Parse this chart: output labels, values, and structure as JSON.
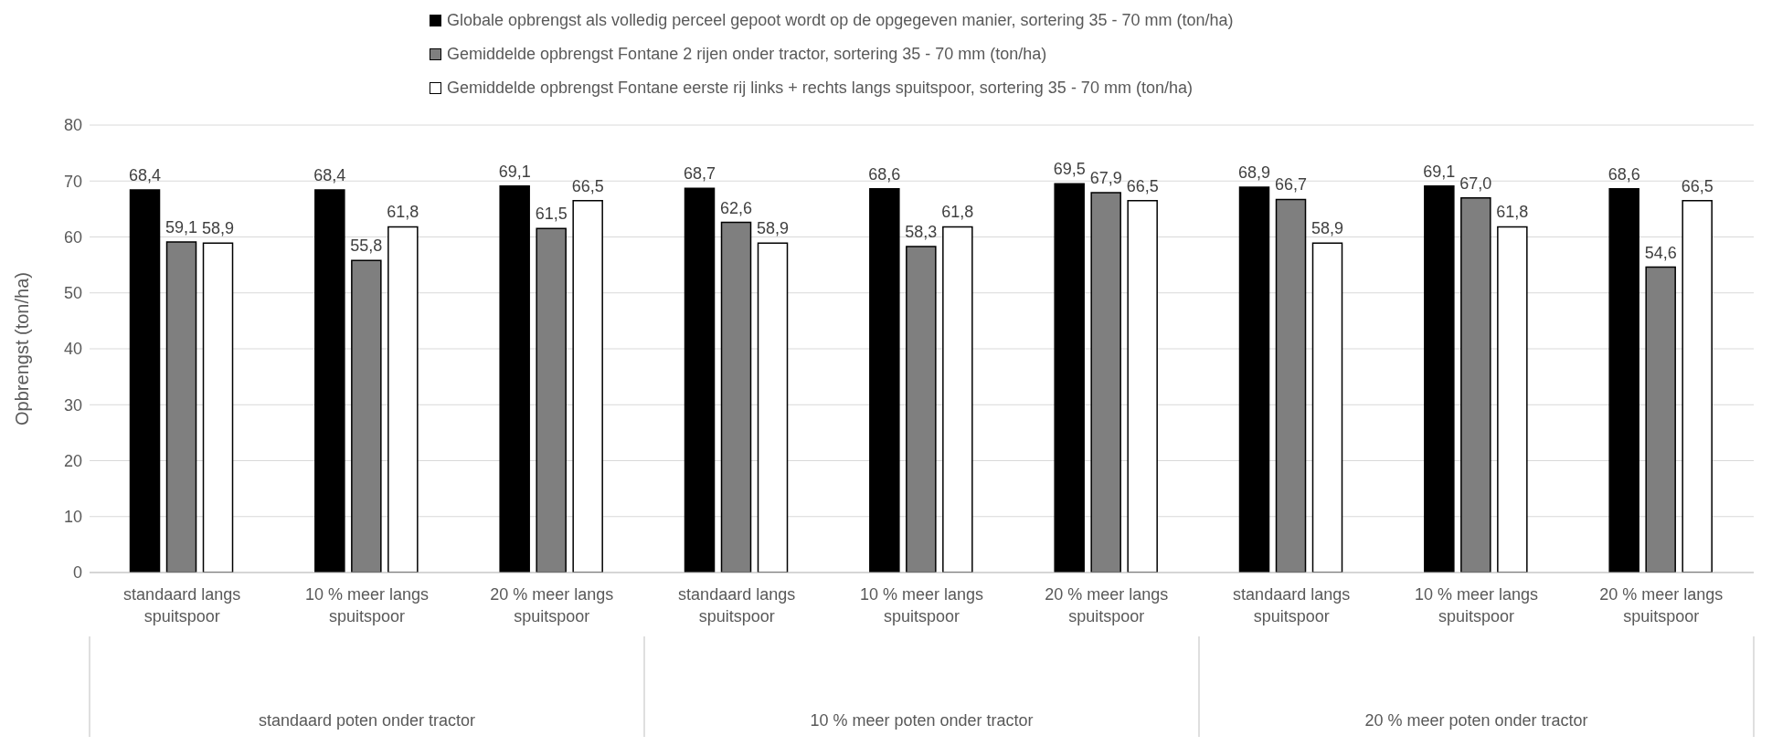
{
  "chart_data": {
    "type": "bar",
    "ylabel": "Opbrengst (ton/ha)",
    "categories": [
      "standaard langs spuitspoor",
      "10 % meer langs spuitspoor",
      "20 % meer langs spuitspoor",
      "standaard langs spuitspoor",
      "10 % meer langs spuitspoor",
      "20 % meer langs spuitspoor",
      "standaard langs spuitspoor",
      "10 % meer langs spuitspoor",
      "20 % meer langs spuitspoor"
    ],
    "series": [
      {
        "name": "Globale opbrengst als volledig perceel gepoot wordt op de opgegeven manier, sortering 35 - 70 mm (ton/ha)",
        "color": "#000000",
        "values": [
          68.4,
          68.4,
          69.1,
          68.7,
          68.6,
          69.5,
          68.9,
          69.1,
          68.6
        ],
        "value_labels": [
          "68,4",
          "68,4",
          "69,1",
          "68,7",
          "68,6",
          "69,5",
          "68,9",
          "69,1",
          "68,6"
        ]
      },
      {
        "name": "Gemiddelde opbrengst Fontane 2 rijen onder tractor, sortering 35 - 70 mm (ton/ha)",
        "color": "#7f7f7f",
        "values": [
          59.1,
          55.8,
          61.5,
          62.6,
          58.3,
          67.9,
          66.7,
          67.0,
          54.6
        ],
        "value_labels": [
          "59,1",
          "55,8",
          "61,5",
          "62,6",
          "58,3",
          "67,9",
          "66,7",
          "67,0",
          "54,6"
        ]
      },
      {
        "name": "Gemiddelde opbrengst Fontane eerste rij links + rechts langs spuitspoor, sortering 35 - 70 mm (ton/ha)",
        "color": "#ffffff",
        "values": [
          58.9,
          61.8,
          66.5,
          58.9,
          61.8,
          66.5,
          58.9,
          61.8,
          66.5
        ],
        "value_labels": [
          "58,9",
          "61,8",
          "66,5",
          "58,9",
          "61,8",
          "66,5",
          "58,9",
          "61,8",
          "66,5"
        ]
      }
    ],
    "annotations": [
      "standaard poten onder tractor",
      "10 % meer poten onder tractor",
      "20 % meer poten onder tractor"
    ],
    "ylim": [
      0,
      80
    ],
    "yticks": [
      0,
      10,
      20,
      30,
      40,
      50,
      60,
      70,
      80
    ],
    "grid": "y",
    "legend": "top"
  }
}
